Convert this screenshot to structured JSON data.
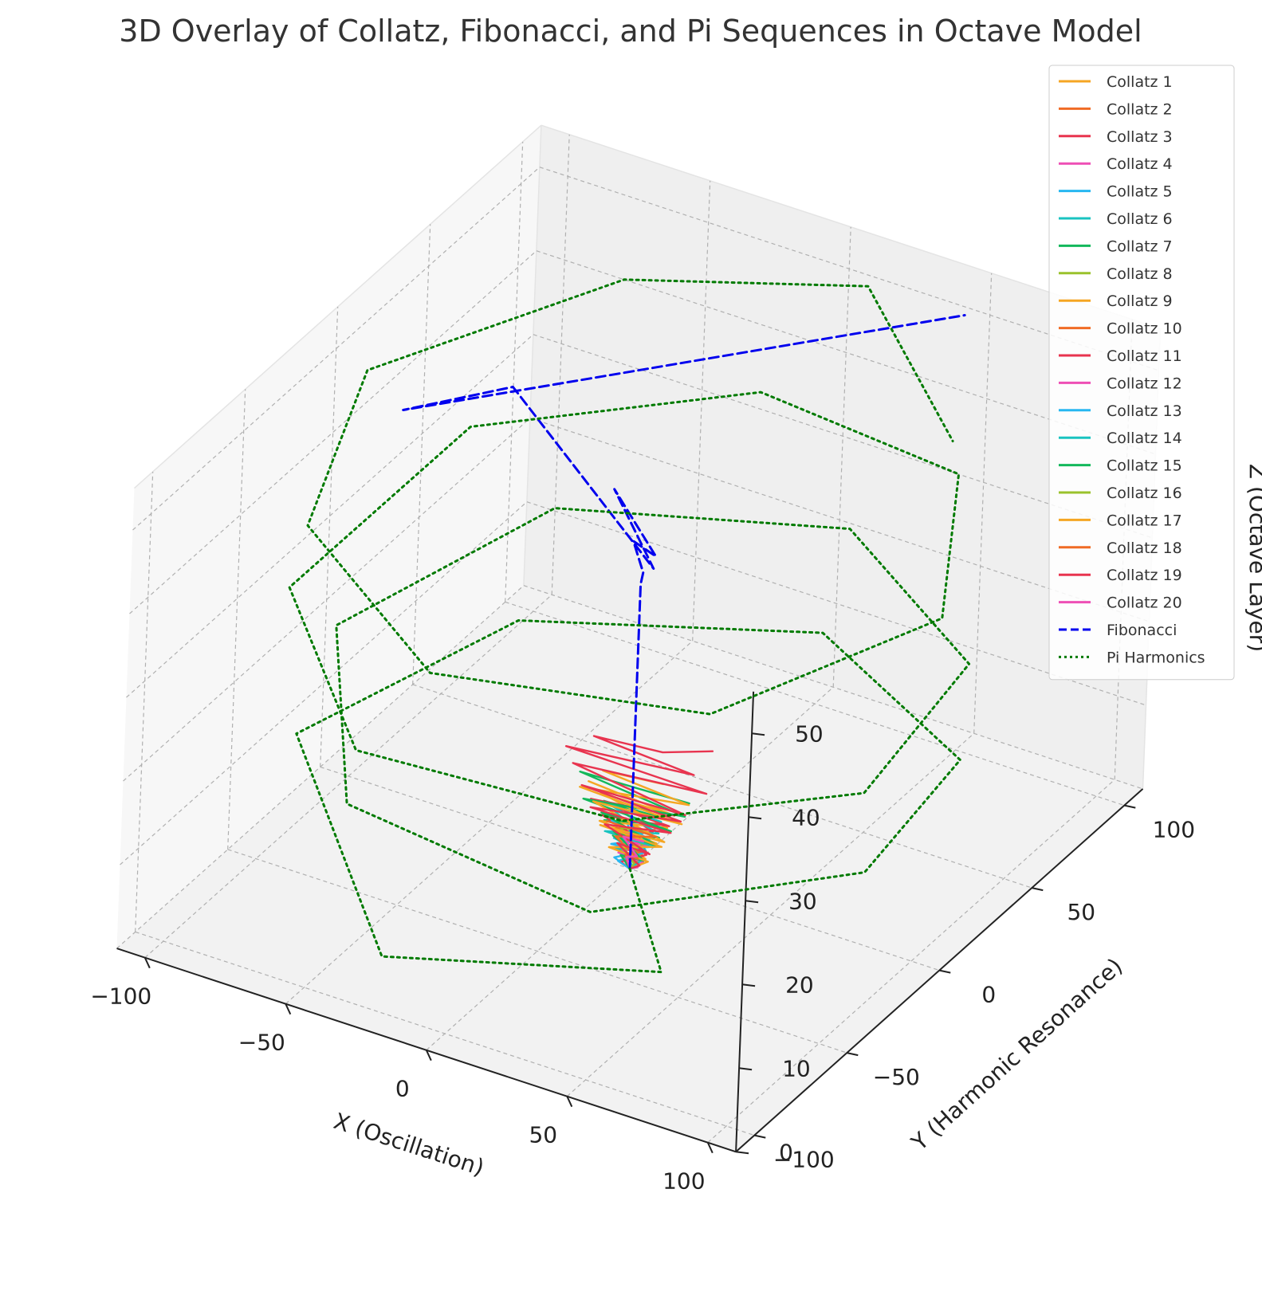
{
  "chart_data": {
    "type": "line3d",
    "title": "3D Overlay of Collatz, Fibonacci, and Pi Sequences in Octave Model",
    "xlabel": "X (Oscillation)",
    "ylabel": "Y (Harmonic Resonance)",
    "zlabel": "Z (Octave Layer)",
    "xlim": [
      -110,
      110
    ],
    "ylim": [
      -110,
      110
    ],
    "zlim": [
      0,
      55
    ],
    "xticks": [
      -100,
      -50,
      0,
      50,
      100
    ],
    "yticks": [
      -100,
      -50,
      0,
      50,
      100
    ],
    "zticks": [
      0,
      10,
      20,
      30,
      40,
      50
    ],
    "xtick_labels": [
      "−100",
      "−50",
      "0",
      "50",
      "100"
    ],
    "ytick_labels": [
      "−100",
      "−50",
      "0",
      "50",
      "100"
    ],
    "ztick_labels": [
      "0",
      "10",
      "20",
      "30",
      "40",
      "50"
    ],
    "grid": true,
    "legend_position": "top-right",
    "series": [
      {
        "name": "Collatz 1",
        "color": "#f5a623",
        "style": "solid",
        "points": [
          [
            0,
            0,
            0
          ],
          [
            3,
            2,
            1
          ],
          [
            -2,
            1,
            2
          ],
          [
            4,
            -1,
            3
          ],
          [
            -3,
            3,
            4
          ],
          [
            5,
            0,
            5
          ],
          [
            -4,
            -2,
            6
          ]
        ]
      },
      {
        "name": "Collatz 2",
        "color": "#f06b25",
        "style": "solid",
        "points": [
          [
            0,
            0,
            0
          ],
          [
            -3,
            1,
            1
          ],
          [
            2,
            -2,
            2
          ],
          [
            -1,
            3,
            3
          ],
          [
            4,
            1,
            4
          ],
          [
            -5,
            0,
            5
          ]
        ]
      },
      {
        "name": "Collatz 3",
        "color": "#e8344f",
        "style": "solid",
        "points": [
          [
            0,
            0,
            0
          ],
          [
            2,
            3,
            1
          ],
          [
            -4,
            -1,
            2
          ],
          [
            6,
            2,
            3
          ],
          [
            -3,
            -3,
            4
          ],
          [
            7,
            1,
            5
          ],
          [
            -6,
            2,
            6
          ]
        ]
      },
      {
        "name": "Collatz 4",
        "color": "#ee4fb5",
        "style": "solid",
        "points": [
          [
            0,
            0,
            0
          ],
          [
            4,
            -2,
            1
          ],
          [
            -2,
            2,
            2
          ],
          [
            5,
            1,
            3
          ],
          [
            -1,
            -3,
            4
          ]
        ]
      },
      {
        "name": "Collatz 5",
        "color": "#27b7f1",
        "style": "solid",
        "points": [
          [
            0,
            0,
            0
          ],
          [
            -5,
            -1,
            1
          ],
          [
            3,
            2,
            2
          ],
          [
            -6,
            0,
            3
          ],
          [
            2,
            -2,
            4
          ],
          [
            -4,
            3,
            5
          ]
        ]
      },
      {
        "name": "Collatz 6",
        "color": "#19c3c0",
        "style": "solid",
        "points": [
          [
            0,
            0,
            0
          ],
          [
            3,
            -3,
            1
          ],
          [
            -4,
            2,
            2
          ],
          [
            6,
            -1,
            3
          ],
          [
            -2,
            3,
            4
          ],
          [
            5,
            -2,
            5
          ],
          [
            -7,
            1,
            6
          ]
        ]
      },
      {
        "name": "Collatz 7",
        "color": "#13b85b",
        "style": "solid",
        "points": [
          [
            0,
            0,
            0
          ],
          [
            -3,
            2,
            1
          ],
          [
            6,
            -2,
            2
          ],
          [
            -7,
            1,
            3
          ],
          [
            8,
            3,
            4
          ],
          [
            -9,
            -1,
            5
          ],
          [
            10,
            2,
            6
          ],
          [
            -10,
            0,
            7
          ],
          [
            11,
            -3,
            8
          ]
        ]
      },
      {
        "name": "Collatz 8",
        "color": "#9ac22c",
        "style": "solid",
        "points": [
          [
            0,
            0,
            0
          ],
          [
            2,
            2,
            1
          ],
          [
            -3,
            -1,
            2
          ],
          [
            4,
            1,
            3
          ],
          [
            -5,
            2,
            4
          ]
        ]
      },
      {
        "name": "Collatz 9",
        "color": "#f5a623",
        "style": "solid",
        "points": [
          [
            0,
            0,
            0
          ],
          [
            -4,
            3,
            1
          ],
          [
            6,
            -1,
            2
          ],
          [
            -8,
            2,
            3
          ],
          [
            9,
            0,
            4
          ],
          [
            -10,
            -2,
            5
          ],
          [
            12,
            1,
            6
          ],
          [
            -13,
            3,
            7
          ],
          [
            14,
            0,
            8
          ],
          [
            -15,
            -1,
            9
          ]
        ]
      },
      {
        "name": "Collatz 10",
        "color": "#f06b25",
        "style": "solid",
        "points": [
          [
            0,
            0,
            0
          ],
          [
            3,
            -1,
            1
          ],
          [
            -5,
            2,
            2
          ],
          [
            6,
            -3,
            3
          ],
          [
            -6,
            1,
            4
          ],
          [
            7,
            2,
            5
          ]
        ]
      },
      {
        "name": "Collatz 11",
        "color": "#e8344f",
        "style": "solid",
        "points": [
          [
            0,
            0,
            0
          ],
          [
            -2,
            -2,
            1
          ],
          [
            5,
            1,
            2
          ],
          [
            -7,
            3,
            3
          ],
          [
            9,
            -2,
            4
          ],
          [
            -11,
            1,
            5
          ],
          [
            12,
            2,
            6
          ],
          [
            -14,
            -1,
            7
          ],
          [
            15,
            0,
            8
          ]
        ]
      },
      {
        "name": "Collatz 12",
        "color": "#ee4fb5",
        "style": "solid",
        "points": [
          [
            0,
            0,
            0
          ],
          [
            4,
            1,
            1
          ],
          [
            -3,
            -2,
            2
          ],
          [
            5,
            2,
            3
          ],
          [
            -4,
            1,
            4
          ]
        ]
      },
      {
        "name": "Collatz 13",
        "color": "#27b7f1",
        "style": "solid",
        "points": [
          [
            0,
            0,
            0
          ],
          [
            -3,
            -2,
            1
          ],
          [
            4,
            2,
            2
          ],
          [
            -5,
            -3,
            3
          ],
          [
            6,
            1,
            4
          ],
          [
            -7,
            0,
            5
          ]
        ]
      },
      {
        "name": "Collatz 14",
        "color": "#19c3c0",
        "style": "solid",
        "points": [
          [
            0,
            0,
            0
          ],
          [
            3,
            2,
            1
          ],
          [
            -5,
            -1,
            2
          ],
          [
            7,
            2,
            3
          ],
          [
            -8,
            -2,
            4
          ],
          [
            9,
            1,
            5
          ],
          [
            -10,
            3,
            6
          ],
          [
            11,
            -1,
            7
          ]
        ]
      },
      {
        "name": "Collatz 15",
        "color": "#13b85b",
        "style": "solid",
        "points": [
          [
            0,
            0,
            0
          ],
          [
            -4,
            1,
            1
          ],
          [
            6,
            -2,
            2
          ],
          [
            -8,
            3,
            3
          ],
          [
            10,
            -1,
            4
          ],
          [
            -12,
            2,
            5
          ],
          [
            14,
            0,
            6
          ],
          [
            -16,
            -2,
            7
          ],
          [
            18,
            1,
            8
          ],
          [
            -20,
            2,
            9
          ],
          [
            20,
            0,
            10
          ]
        ]
      },
      {
        "name": "Collatz 16",
        "color": "#9ac22c",
        "style": "solid",
        "points": [
          [
            0,
            0,
            0
          ],
          [
            2,
            -1,
            1
          ],
          [
            -3,
            1,
            2
          ],
          [
            4,
            -2,
            3
          ],
          [
            -5,
            2,
            4
          ],
          [
            6,
            0,
            5
          ]
        ]
      },
      {
        "name": "Collatz 17",
        "color": "#f5a623",
        "style": "solid",
        "points": [
          [
            0,
            0,
            0
          ],
          [
            5,
            2,
            1
          ],
          [
            -7,
            -1,
            2
          ],
          [
            9,
            3,
            3
          ],
          [
            -11,
            0,
            4
          ],
          [
            13,
            -2,
            5
          ],
          [
            -15,
            2,
            6
          ],
          [
            17,
            1,
            7
          ],
          [
            -18,
            -1,
            8
          ],
          [
            18,
            3,
            9
          ],
          [
            -12,
            2,
            10
          ],
          [
            10,
            1,
            11
          ]
        ]
      },
      {
        "name": "Collatz 18",
        "color": "#f06b25",
        "style": "solid",
        "points": [
          [
            0,
            0,
            0
          ],
          [
            -3,
            2,
            1
          ],
          [
            4,
            -2,
            2
          ],
          [
            -6,
            1,
            3
          ],
          [
            7,
            3,
            4
          ],
          [
            -8,
            -1,
            5
          ]
        ]
      },
      {
        "name": "Collatz 19",
        "color": "#e8344f",
        "style": "solid",
        "points": [
          [
            0,
            0,
            0
          ],
          [
            4,
            -1,
            1
          ],
          [
            -6,
            2,
            2
          ],
          [
            8,
            -2,
            3
          ],
          [
            -10,
            1,
            4
          ],
          [
            12,
            3,
            5
          ],
          [
            -14,
            -1,
            6
          ],
          [
            16,
            2,
            7
          ],
          [
            -18,
            0,
            8
          ],
          [
            20,
            -2,
            9
          ],
          [
            -22,
            1,
            10
          ],
          [
            24,
            3,
            11
          ],
          [
            -24,
            0,
            12
          ],
          [
            20,
            2,
            13
          ],
          [
            -15,
            1,
            14
          ],
          [
            10,
            0,
            15
          ],
          [
            25,
            4,
            16
          ]
        ]
      },
      {
        "name": "Collatz 20",
        "color": "#ee4fb5",
        "style": "solid",
        "points": [
          [
            0,
            0,
            0
          ],
          [
            -2,
            1,
            1
          ],
          [
            3,
            -1,
            2
          ],
          [
            -4,
            2,
            3
          ],
          [
            5,
            -1,
            4
          ]
        ]
      },
      {
        "name": "Fibonacci",
        "color": "#0000ee",
        "style": "dashed",
        "points": [
          [
            0,
            0,
            0
          ],
          [
            0,
            0,
            1
          ],
          [
            0,
            0,
            2
          ],
          [
            0,
            0,
            3
          ],
          [
            0,
            0,
            5
          ],
          [
            0,
            0,
            8
          ],
          [
            0,
            0,
            13
          ],
          [
            0,
            0,
            21
          ],
          [
            0,
            0,
            34
          ],
          [
            2,
            -2,
            36
          ],
          [
            -5,
            3,
            38
          ],
          [
            10,
            -8,
            40
          ],
          [
            -18,
            12,
            41
          ],
          [
            20,
            -25,
            43
          ],
          [
            -60,
            20,
            47
          ],
          [
            -70,
            -25,
            52
          ],
          [
            60,
            80,
            57
          ]
        ]
      },
      {
        "name": "Pi Harmonics",
        "color": "#007a00",
        "style": "dotted",
        "points": [
          [
            0,
            0,
            0
          ],
          [
            50,
            -60,
            5
          ],
          [
            -20,
            -105,
            8
          ],
          [
            -100,
            -30,
            11
          ],
          [
            -80,
            60,
            9
          ],
          [
            5,
            95,
            10
          ],
          [
            80,
            55,
            11
          ],
          [
            95,
            -20,
            14
          ],
          [
            40,
            -85,
            16
          ],
          [
            -50,
            -80,
            18
          ],
          [
            -100,
            -10,
            20
          ],
          [
            -75,
            70,
            21
          ],
          [
            10,
            100,
            22
          ],
          [
            85,
            50,
            24
          ],
          [
            100,
            -30,
            26
          ],
          [
            50,
            -85,
            28
          ],
          [
            -35,
            -100,
            30
          ],
          [
            -95,
            -45,
            32
          ],
          [
            -90,
            45,
            34
          ],
          [
            -20,
            95,
            36
          ],
          [
            60,
            80,
            38
          ],
          [
            100,
            10,
            39
          ],
          [
            70,
            -70,
            40
          ],
          [
            -10,
            -100,
            42
          ],
          [
            -80,
            -60,
            44
          ],
          [
            -105,
            10,
            46
          ],
          [
            -60,
            80,
            48
          ],
          [
            10,
            105,
            50
          ],
          [
            70,
            60,
            47
          ]
        ]
      }
    ]
  }
}
